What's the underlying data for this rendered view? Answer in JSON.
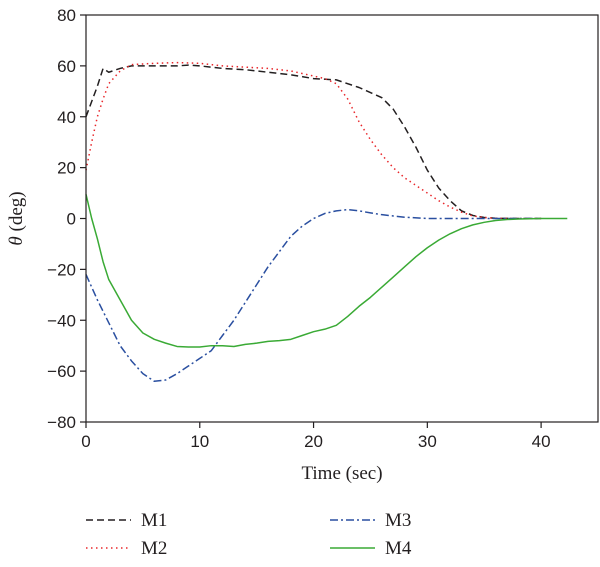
{
  "chart_data": {
    "type": "line",
    "xlabel": "Time (sec)",
    "ylabel_symbol": "θ",
    "ylabel_unit": " (deg)",
    "xlim": [
      0,
      45
    ],
    "ylim": [
      -80,
      80
    ],
    "x_ticks": [
      0,
      10,
      20,
      30,
      40
    ],
    "y_ticks": [
      -80,
      -60,
      -40,
      -20,
      0,
      20,
      40,
      60,
      80
    ],
    "grid": false,
    "legend_placement": "below",
    "series": [
      {
        "name": "M1",
        "color": "#231f20",
        "dash": "dashed",
        "points": [
          [
            0,
            40
          ],
          [
            0.5,
            46
          ],
          [
            1,
            52
          ],
          [
            1.5,
            59
          ],
          [
            2,
            57.5
          ],
          [
            3,
            59
          ],
          [
            4,
            60
          ],
          [
            6,
            60
          ],
          [
            8,
            60
          ],
          [
            9,
            60.3
          ],
          [
            10,
            60
          ],
          [
            12,
            59
          ],
          [
            14,
            58.5
          ],
          [
            16,
            57.5
          ],
          [
            18,
            56.5
          ],
          [
            20,
            55
          ],
          [
            22,
            54.5
          ],
          [
            24,
            51.5
          ],
          [
            26,
            47.5
          ],
          [
            27,
            43
          ],
          [
            28,
            36
          ],
          [
            29,
            28
          ],
          [
            30,
            19
          ],
          [
            31,
            12
          ],
          [
            32,
            7
          ],
          [
            33,
            3
          ],
          [
            34,
            1.2
          ],
          [
            35,
            0.4
          ],
          [
            36,
            0.1
          ],
          [
            38,
            0
          ],
          [
            40,
            0
          ]
        ]
      },
      {
        "name": "M2",
        "color": "#e8262a",
        "dash": "dotted",
        "points": [
          [
            0,
            19
          ],
          [
            0.5,
            30
          ],
          [
            1,
            40
          ],
          [
            1.5,
            47
          ],
          [
            2,
            53
          ],
          [
            3,
            58
          ],
          [
            4,
            60.5
          ],
          [
            6,
            61
          ],
          [
            8,
            61.3
          ],
          [
            10,
            61
          ],
          [
            12,
            60
          ],
          [
            14,
            59.5
          ],
          [
            16,
            59
          ],
          [
            18,
            58
          ],
          [
            20,
            56
          ],
          [
            21,
            55
          ],
          [
            22,
            53
          ],
          [
            23,
            47
          ],
          [
            24,
            38
          ],
          [
            25,
            31
          ],
          [
            26,
            25
          ],
          [
            27,
            20
          ],
          [
            28,
            16
          ],
          [
            29,
            13
          ],
          [
            30,
            10
          ],
          [
            31,
            7
          ],
          [
            32,
            4.5
          ],
          [
            33,
            2.5
          ],
          [
            34,
            1
          ],
          [
            35,
            0.4
          ],
          [
            36,
            0.1
          ],
          [
            38,
            0
          ],
          [
            40,
            0
          ]
        ]
      },
      {
        "name": "M3",
        "color": "#2a4fa0",
        "dash": "dashdot",
        "points": [
          [
            0,
            -22
          ],
          [
            1,
            -32
          ],
          [
            2,
            -41
          ],
          [
            3,
            -50
          ],
          [
            4,
            -56
          ],
          [
            5,
            -61
          ],
          [
            6,
            -64
          ],
          [
            7,
            -63.5
          ],
          [
            8,
            -61
          ],
          [
            9,
            -58
          ],
          [
            10,
            -55
          ],
          [
            11,
            -52
          ],
          [
            12,
            -46
          ],
          [
            13,
            -40
          ],
          [
            14,
            -33
          ],
          [
            15,
            -26
          ],
          [
            16,
            -19
          ],
          [
            17,
            -13
          ],
          [
            18,
            -7
          ],
          [
            19,
            -3
          ],
          [
            20,
            0
          ],
          [
            21,
            2
          ],
          [
            22,
            3
          ],
          [
            23,
            3.5
          ],
          [
            24,
            3
          ],
          [
            25,
            2.2
          ],
          [
            26,
            1.5
          ],
          [
            27,
            1
          ],
          [
            28,
            0.5
          ],
          [
            30,
            0
          ],
          [
            35,
            0
          ],
          [
            40,
            0
          ]
        ]
      },
      {
        "name": "M4",
        "color": "#3aaa35",
        "dash": "solid",
        "points": [
          [
            0,
            9.5
          ],
          [
            0.5,
            0
          ],
          [
            1,
            -8
          ],
          [
            1.5,
            -17
          ],
          [
            2,
            -24
          ],
          [
            3,
            -32
          ],
          [
            4,
            -40
          ],
          [
            5,
            -45
          ],
          [
            6,
            -47.5
          ],
          [
            7,
            -49
          ],
          [
            8,
            -50.3
          ],
          [
            9,
            -50.5
          ],
          [
            10,
            -50.5
          ],
          [
            11,
            -50
          ],
          [
            12,
            -50
          ],
          [
            13,
            -50.3
          ],
          [
            14,
            -49.5
          ],
          [
            15,
            -49
          ],
          [
            16,
            -48.3
          ],
          [
            17,
            -48
          ],
          [
            18,
            -47.5
          ],
          [
            19,
            -46
          ],
          [
            20,
            -44.5
          ],
          [
            21,
            -43.5
          ],
          [
            22,
            -42
          ],
          [
            23,
            -38.5
          ],
          [
            24,
            -34.5
          ],
          [
            25,
            -31
          ],
          [
            26,
            -27
          ],
          [
            27,
            -23
          ],
          [
            28,
            -19
          ],
          [
            29,
            -15
          ],
          [
            30,
            -11.5
          ],
          [
            31,
            -8.5
          ],
          [
            32,
            -6
          ],
          [
            33,
            -4
          ],
          [
            34,
            -2.5
          ],
          [
            35,
            -1.5
          ],
          [
            36,
            -0.8
          ],
          [
            37,
            -0.4
          ],
          [
            38,
            -0.2
          ],
          [
            39,
            -0.1
          ],
          [
            40,
            0
          ],
          [
            42.3,
            0
          ]
        ]
      }
    ]
  }
}
